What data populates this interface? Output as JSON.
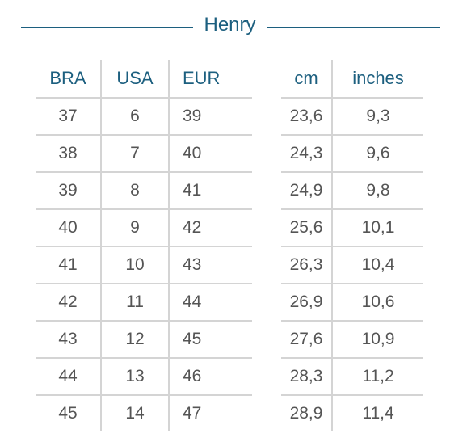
{
  "title": "Henry",
  "left_table": {
    "headers": [
      "BRA",
      "USA",
      "EUR"
    ],
    "rows": [
      [
        "37",
        "6",
        "39"
      ],
      [
        "38",
        "7",
        "40"
      ],
      [
        "39",
        "8",
        "41"
      ],
      [
        "40",
        "9",
        "42"
      ],
      [
        "41",
        "10",
        "43"
      ],
      [
        "42",
        "11",
        "44"
      ],
      [
        "43",
        "12",
        "45"
      ],
      [
        "44",
        "13",
        "46"
      ],
      [
        "45",
        "14",
        "47"
      ]
    ]
  },
  "right_table": {
    "headers": [
      "cm",
      "inches"
    ],
    "rows": [
      [
        "23,6",
        "9,3"
      ],
      [
        "24,3",
        "9,6"
      ],
      [
        "24,9",
        "9,8"
      ],
      [
        "25,6",
        "10,1"
      ],
      [
        "26,3",
        "10,4"
      ],
      [
        "26,9",
        "10,6"
      ],
      [
        "27,6",
        "10,9"
      ],
      [
        "28,3",
        "11,2"
      ],
      [
        "28,9",
        "11,4"
      ]
    ]
  }
}
